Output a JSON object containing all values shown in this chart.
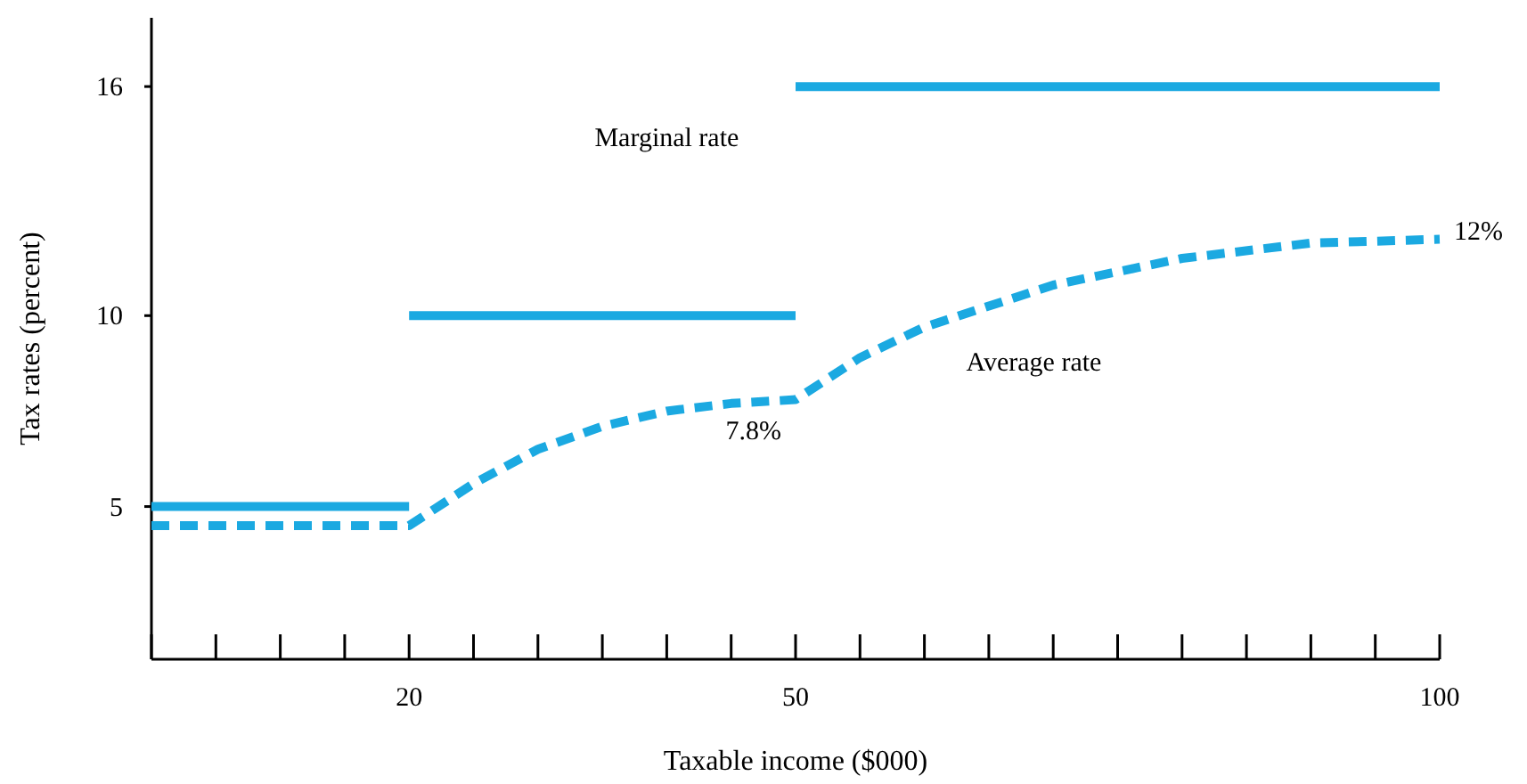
{
  "chart_data": {
    "type": "line",
    "xlabel": "Taxable income ($000)",
    "ylabel": "Tax rates (percent)",
    "xlim": [
      0,
      100
    ],
    "ylim": [
      1,
      17.8
    ],
    "xticks": [
      {
        "value": 0,
        "label": null
      },
      {
        "value": 5,
        "label": null
      },
      {
        "value": 10,
        "label": null
      },
      {
        "value": 15,
        "label": null
      },
      20,
      {
        "value": 25,
        "label": null
      },
      {
        "value": 30,
        "label": null
      },
      {
        "value": 35,
        "label": null
      },
      {
        "value": 40,
        "label": null
      },
      {
        "value": 45,
        "label": null
      },
      50,
      {
        "value": 55,
        "label": null
      },
      {
        "value": 60,
        "label": null
      },
      {
        "value": 65,
        "label": null
      },
      {
        "value": 70,
        "label": null
      },
      {
        "value": 75,
        "label": null
      },
      {
        "value": 80,
        "label": null
      },
      {
        "value": 85,
        "label": null
      },
      {
        "value": 90,
        "label": null
      },
      {
        "value": 95,
        "label": null
      },
      100
    ],
    "yticks": [
      5,
      10,
      16
    ],
    "grid": false,
    "legend": false,
    "marker": "none",
    "series": [
      {
        "color": "#1ba9e1",
        "line_style": "solid",
        "x": [
          0,
          20
        ],
        "values": [
          5,
          5
        ]
      },
      {
        "color": "#1ba9e1",
        "line_style": "solid",
        "x": [
          20,
          50
        ],
        "values": [
          10,
          10
        ]
      },
      {
        "name": "Marginal rate",
        "color": "#1ba9e1",
        "line_style": "solid",
        "x": [
          50,
          100
        ],
        "values": [
          16,
          16
        ]
      },
      {
        "name": "Average rate",
        "color": "#1ba9e1",
        "line_style": "dashed",
        "x": [
          0,
          20,
          25,
          30,
          35,
          40,
          45,
          50,
          55,
          60,
          70,
          80,
          90,
          100
        ],
        "values": [
          4.5,
          4.5,
          5.6,
          6.5,
          7.1,
          7.5,
          7.7,
          7.8,
          8.9,
          9.7,
          10.8,
          11.5,
          11.9,
          12
        ]
      }
    ],
    "annotations": [
      {
        "text": "7.8%",
        "x": 50,
        "y": 7.8
      },
      {
        "text": "12%",
        "x": 100,
        "y": 12
      }
    ]
  }
}
